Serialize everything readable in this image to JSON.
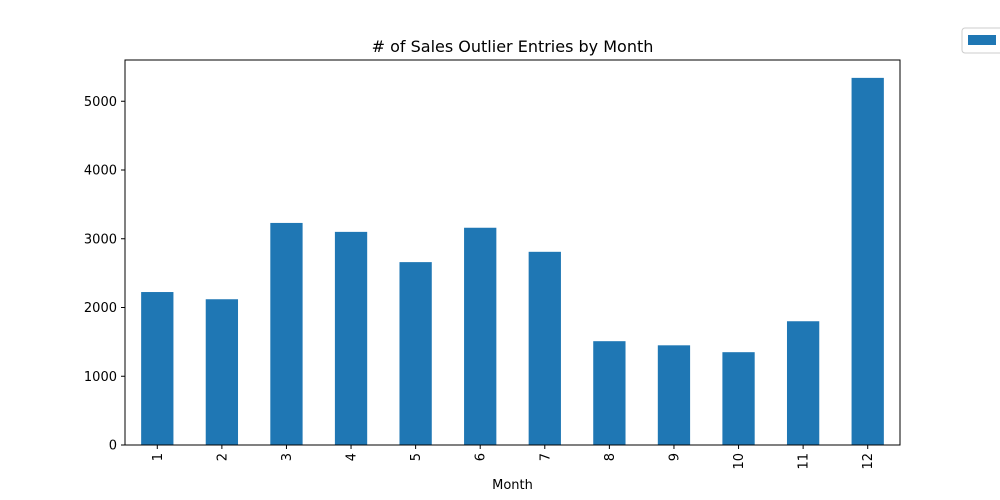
{
  "chart_data": {
    "type": "bar",
    "title": "# of Sales Outlier Entries by Month",
    "xlabel": "Month",
    "ylabel": "",
    "categories": [
      "1",
      "2",
      "3",
      "4",
      "5",
      "6",
      "7",
      "8",
      "9",
      "10",
      "11",
      "12"
    ],
    "values": [
      2225,
      2120,
      3230,
      3100,
      2660,
      3160,
      2810,
      1510,
      1450,
      1350,
      1800,
      5340
    ],
    "ylim": [
      0,
      5600
    ],
    "yticks": [
      0,
      1000,
      2000,
      3000,
      4000,
      5000
    ],
    "grid": false,
    "legend": {
      "placement": "outside-top-right",
      "entries": [
        ""
      ]
    },
    "bar_color": "#1f77b4",
    "x_tick_rotation": "vertical"
  }
}
